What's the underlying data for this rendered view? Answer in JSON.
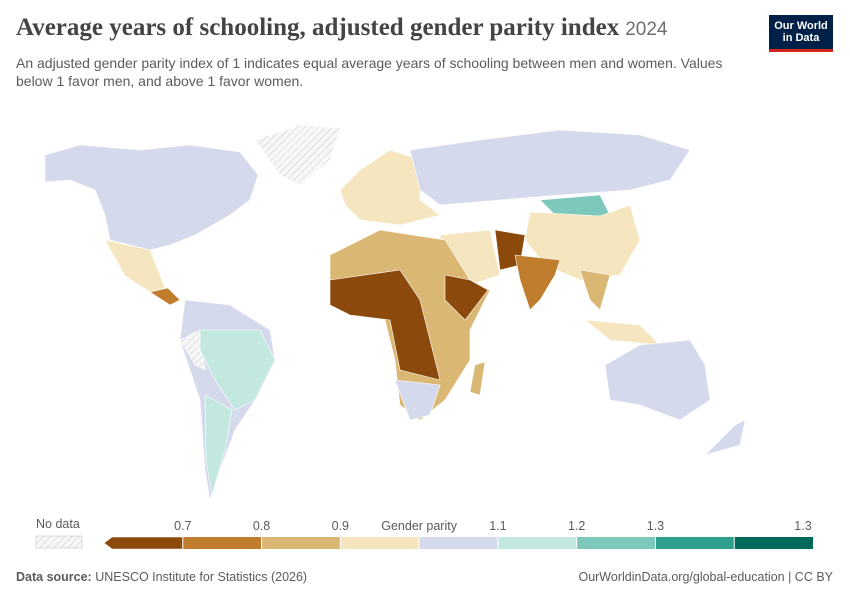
{
  "header": {
    "title": "Average years of schooling, adjusted gender parity index",
    "year": "2024",
    "subtitle": "An adjusted gender parity index of 1 indicates equal average years of schooling between men and women. Values below 1 favor men, and above 1 favor women.",
    "logo": [
      "Our World",
      "in Data"
    ]
  },
  "legend": {
    "no_data": "No data",
    "ticks": [
      "0.7",
      "0.8",
      "0.9",
      "Gender parity",
      "1.1",
      "1.2",
      "1.3",
      "1.3"
    ],
    "colors": [
      "#8b4a0b",
      "#c07d2e",
      "#dbb774",
      "#f6e6bf",
      "#d5d9ec",
      "#c3e8e0",
      "#7cc9bc",
      "#2e9e8d",
      "#006a5d"
    ]
  },
  "footer": {
    "source_label": "Data source:",
    "source": "UNESCO Institute for Statistics (2026)",
    "link": "OurWorldinData.org/global-education | CC BY"
  }
}
